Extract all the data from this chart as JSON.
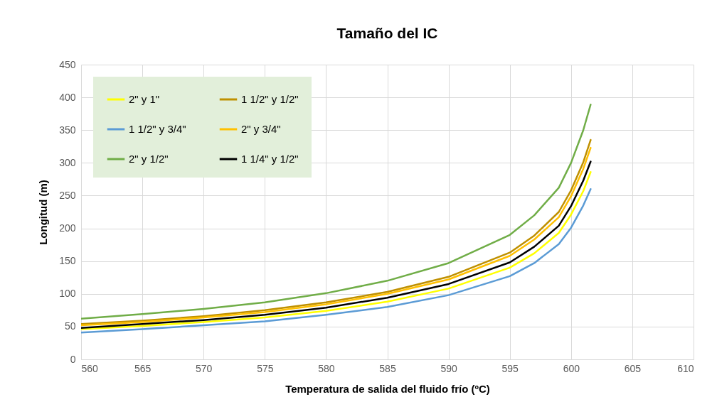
{
  "chart_data": {
    "type": "line",
    "title": "Tamaño del IC",
    "xlabel": "Temperatura de salida del fluido frío (ºC)",
    "ylabel": "Longitud (m)",
    "x": [
      560,
      565,
      570,
      575,
      580,
      585,
      590,
      595,
      597,
      599,
      600,
      601,
      601.6
    ],
    "series": [
      {
        "name": "2\" y 1\"",
        "color": "#ffff00",
        "values": [
          46,
          51,
          57,
          64,
          74,
          88,
          108,
          140,
          162,
          193,
          221,
          257,
          286
        ]
      },
      {
        "name": "1 1/2\" y 3/4\"",
        "color": "#5b9bd5",
        "values": [
          41,
          46,
          52,
          58,
          68,
          80,
          98,
          127,
          147,
          176,
          201,
          235,
          260
        ]
      },
      {
        "name": "2\" y 1/2\"",
        "color": "#70ad47",
        "values": [
          62,
          69,
          77,
          87,
          101,
          120,
          147,
          190,
          220,
          262,
          300,
          350,
          389
        ]
      },
      {
        "name": "1 1/2\" y 1/2\"",
        "color": "#bf9000",
        "values": [
          54,
          59,
          66,
          75,
          87,
          103,
          126,
          163,
          189,
          225,
          258,
          301,
          335
        ]
      },
      {
        "name": "2\" y 3/4\"",
        "color": "#ffc000",
        "values": [
          52,
          57,
          64,
          72,
          84,
          100,
          122,
          158,
          183,
          217,
          249,
          291,
          323
        ]
      },
      {
        "name": "1 1/4\" y 1/2\"",
        "color": "#000000",
        "values": [
          48,
          54,
          60,
          68,
          79,
          94,
          115,
          148,
          172,
          204,
          234,
          273,
          302
        ]
      }
    ],
    "xlim": [
      560,
      610
    ],
    "xticks": [
      560,
      565,
      570,
      575,
      580,
      585,
      590,
      595,
      600,
      605,
      610
    ],
    "ylim": [
      0,
      450
    ],
    "yticks": [
      0,
      50,
      100,
      150,
      200,
      250,
      300,
      350,
      400,
      450
    ],
    "grid": true,
    "legend": "top left",
    "marker": "none",
    "line_style": "solid"
  }
}
